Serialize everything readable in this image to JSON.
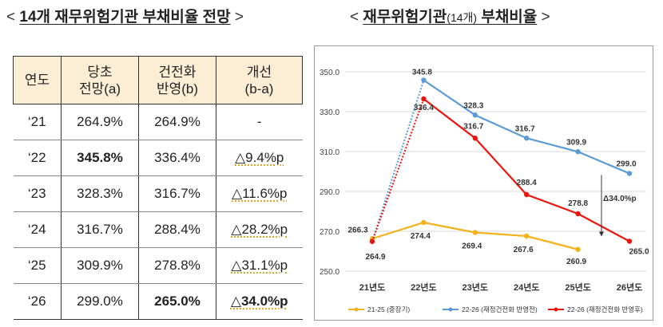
{
  "left_title": {
    "open": "<",
    "text": "14개 재무위험기관 부채비율 전망",
    "close": ">"
  },
  "right_title": {
    "open": "<",
    "text_main": "재무위험기관",
    "text_small": "(14개)",
    "text_end": "부채비율",
    "close": ">"
  },
  "table": {
    "headers": [
      {
        "line1": "연도",
        "line2": ""
      },
      {
        "line1": "당초",
        "line2": "전망(a)"
      },
      {
        "line1": "건전화",
        "line2": "반영(b)"
      },
      {
        "line1": "개선",
        "line2": "(b-a)"
      }
    ],
    "rows": [
      [
        "‘21",
        "264.9%",
        "264.9%",
        "-"
      ],
      [
        "‘22",
        "345.8%",
        "336.4%",
        "△9.4%p"
      ],
      [
        "‘23",
        "328.3%",
        "316.7%",
        "△11.6%p"
      ],
      [
        "‘24",
        "316.7%",
        "288.4%",
        "△28.2%p"
      ],
      [
        "‘25",
        "309.9%",
        "278.8%",
        "△31.1%p"
      ],
      [
        "‘26",
        "299.0%",
        "265.0%",
        "△34.0%p"
      ]
    ]
  },
  "chart_data": {
    "type": "line",
    "categories": [
      "21년도",
      "22년도",
      "23년도",
      "24년도",
      "25년도",
      "26년도"
    ],
    "ylim": [
      250,
      350
    ],
    "yticks": [
      "250.0",
      "270.0",
      "290.0",
      "310.0",
      "330.0",
      "350.0"
    ],
    "grid": true,
    "legend_position": "bottom",
    "series": [
      {
        "name": "21-25 (중장기)",
        "color": "#f2b21b",
        "values": [
          266.3,
          274.4,
          269.4,
          267.6,
          260.9,
          null
        ],
        "labels": [
          "266.3",
          "274.4",
          "269.4",
          "267.6",
          "260.9",
          ""
        ]
      },
      {
        "name": "22-26 (재정건전화 반영전)",
        "color": "#5b9bd5",
        "values": [
          264.9,
          345.8,
          328.3,
          316.7,
          309.9,
          299.0
        ],
        "labels": [
          "",
          "345.8",
          "328.3",
          "316.7",
          "309.9",
          "299.0"
        ],
        "dotted_first_segment": true
      },
      {
        "name": "22-26 (재정건전화 반영후)",
        "color": "#e8160f",
        "values": [
          264.9,
          336.4,
          316.7,
          288.4,
          278.8,
          265.0
        ],
        "labels": [
          "264.9",
          "336.4",
          "316.7",
          "288.4",
          "278.8",
          "265.0"
        ],
        "dotted_first_segment": true
      }
    ],
    "annotation": {
      "text": "Δ34.0%p",
      "from": 299.0,
      "to": 265.0,
      "category_index": 5
    }
  }
}
